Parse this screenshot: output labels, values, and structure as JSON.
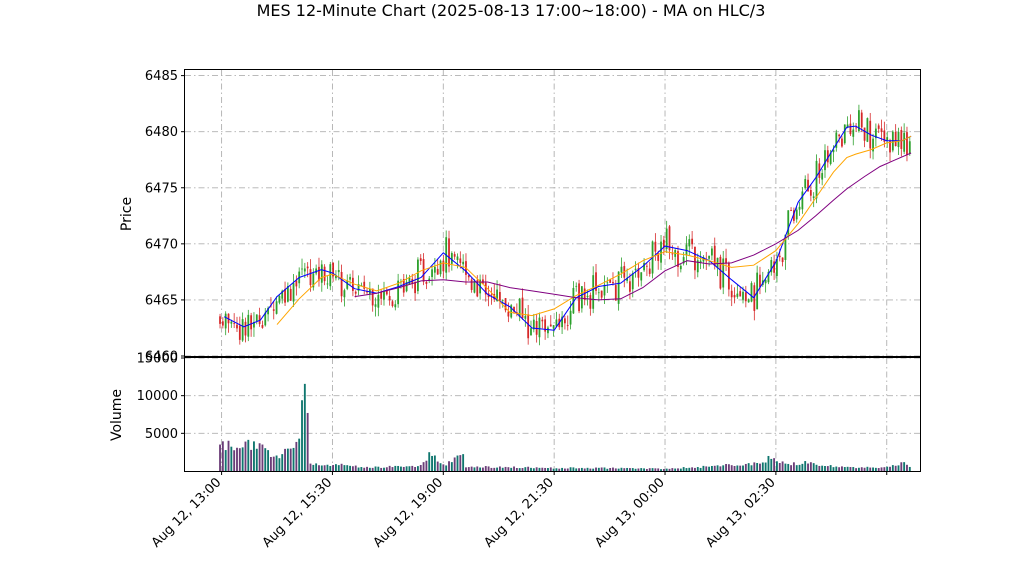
{
  "chart_data": [
    {
      "type": "candlestick",
      "title": "MES 12-Minute Chart (2025-08-13 17:00~18:00) - MA on HLC/3",
      "ylabel": "Price",
      "ylim": [
        6460,
        6485.5
      ],
      "yticks": [
        6460,
        6465,
        6470,
        6475,
        6480,
        6485
      ],
      "grid": true,
      "up_color": "#2ca02c",
      "down_color": "#d62728",
      "series": [
        {
          "color": "#0000ff",
          "points": [
            [
              0.12,
              6463.5
            ],
            [
              1,
              6462.6
            ],
            [
              1.75,
              6463.2
            ],
            [
              2.5,
              6465.3
            ],
            [
              3.5,
              6467.0
            ],
            [
              4.5,
              6467.7
            ],
            [
              5,
              6467.4
            ],
            [
              6,
              6466.0
            ],
            [
              7,
              6465.6
            ],
            [
              8,
              6466.2
            ],
            [
              9,
              6467.0
            ],
            [
              10,
              6469.2
            ],
            [
              11,
              6467.6
            ],
            [
              12,
              6465.5
            ],
            [
              13,
              6464.4
            ],
            [
              14,
              6462.5
            ],
            [
              15,
              6462.3
            ],
            [
              16,
              6465.2
            ],
            [
              17,
              6466.2
            ],
            [
              18,
              6466.5
            ],
            [
              19,
              6468.0
            ],
            [
              20,
              6469.8
            ],
            [
              21,
              6469.4
            ],
            [
              22,
              6468.5
            ],
            [
              23,
              6466.8
            ],
            [
              24,
              6465.2
            ],
            [
              25,
              6468.4
            ],
            [
              26,
              6473.7
            ],
            [
              26.8,
              6475.9
            ],
            [
              27.6,
              6478.5
            ],
            [
              28.2,
              6480.4
            ],
            [
              28.6,
              6480.5
            ],
            [
              29.3,
              6479.7
            ],
            [
              30,
              6479.2
            ],
            [
              30.7,
              6479.2
            ],
            [
              31.1,
              6479.6
            ]
          ]
        },
        {
          "color": "#ffa500",
          "points": [
            [
              2.5,
              6462.8
            ],
            [
              3.5,
              6465.1
            ],
            [
              4.5,
              6467.0
            ],
            [
              5,
              6467.3
            ],
            [
              6,
              6466.4
            ],
            [
              7,
              6465.8
            ],
            [
              8,
              6466.5
            ],
            [
              9,
              6467.6
            ],
            [
              10,
              6468.3
            ],
            [
              11,
              6467.9
            ],
            [
              12,
              6466.0
            ],
            [
              13,
              6463.9
            ],
            [
              14,
              6463.6
            ],
            [
              15,
              6464.2
            ],
            [
              16,
              6465.4
            ],
            [
              17,
              6466.3
            ],
            [
              18,
              6467.3
            ],
            [
              19,
              6468.5
            ],
            [
              20,
              6469.3
            ],
            [
              21,
              6469.0
            ],
            [
              22,
              6468.5
            ],
            [
              23,
              6467.9
            ],
            [
              24,
              6468.1
            ],
            [
              25,
              6469.4
            ],
            [
              26,
              6471.8
            ],
            [
              26.8,
              6474.1
            ],
            [
              27.6,
              6476.4
            ],
            [
              28.2,
              6477.7
            ],
            [
              28.6,
              6478.0
            ],
            [
              29.3,
              6478.4
            ],
            [
              30,
              6479.0
            ],
            [
              30.7,
              6479.2
            ],
            [
              31.1,
              6479.6
            ]
          ]
        },
        {
          "color": "#800080",
          "points": [
            [
              6,
              6465.3
            ],
            [
              7,
              6465.6
            ],
            [
              8,
              6466.1
            ],
            [
              9,
              6466.7
            ],
            [
              10,
              6466.8
            ],
            [
              11,
              6466.6
            ],
            [
              12,
              6466.6
            ],
            [
              13,
              6466.1
            ],
            [
              14,
              6465.8
            ],
            [
              15,
              6465.5
            ],
            [
              16,
              6465.2
            ],
            [
              17,
              6465.0
            ],
            [
              18,
              6465.1
            ],
            [
              19,
              6466.1
            ],
            [
              20,
              6467.6
            ],
            [
              21,
              6468.5
            ],
            [
              22,
              6468.2
            ],
            [
              23,
              6468.3
            ],
            [
              24,
              6469.0
            ],
            [
              25,
              6470.0
            ],
            [
              26,
              6471.2
            ],
            [
              26.8,
              6472.5
            ],
            [
              27.6,
              6473.9
            ],
            [
              28.2,
              6474.9
            ],
            [
              29,
              6476.0
            ],
            [
              29.7,
              6476.9
            ],
            [
              30.4,
              6477.5
            ],
            [
              31.1,
              6478.1
            ]
          ]
        }
      ]
    },
    {
      "type": "bar",
      "ylabel": "Volume",
      "ylim": [
        0,
        15000
      ],
      "yticks": [
        5000,
        10000,
        15000
      ],
      "grid": true,
      "up_color": "#0f766e",
      "down_color": "#6b3d78"
    }
  ],
  "x_axis": {
    "ticks": [
      {
        "pos": 0,
        "label": "Aug 12, 13:00"
      },
      {
        "pos": 5,
        "label": "Aug 12, 15:30"
      },
      {
        "pos": 10,
        "label": "Aug 12, 19:00"
      },
      {
        "pos": 15,
        "label": "Aug 12, 21:30"
      },
      {
        "pos": 20,
        "label": "Aug 13, 00:00"
      },
      {
        "pos": 25,
        "label": "Aug 13, 02:30"
      },
      {
        "pos": 30,
        "label": ""
      }
    ],
    "xlim": [
      -1.65,
      31.5
    ]
  },
  "volume_profile": [
    [
      0,
      3500
    ],
    [
      0.5,
      3100
    ],
    [
      1,
      3700
    ],
    [
      1.5,
      3300
    ],
    [
      2,
      2600
    ],
    [
      2.5,
      2200
    ],
    [
      3,
      2500
    ],
    [
      3.5,
      3900
    ],
    [
      3.8,
      13700
    ],
    [
      3.9,
      5500
    ],
    [
      4,
      1200
    ],
    [
      4.5,
      700
    ],
    [
      5,
      900
    ],
    [
      6,
      600
    ],
    [
      7,
      500
    ],
    [
      8,
      600
    ],
    [
      9,
      700
    ],
    [
      9.6,
      2900
    ],
    [
      9.8,
      1200
    ],
    [
      10,
      800
    ],
    [
      10.9,
      2000
    ],
    [
      11,
      600
    ],
    [
      13,
      500
    ],
    [
      15,
      400
    ],
    [
      17,
      400
    ],
    [
      20,
      300
    ],
    [
      22,
      600
    ],
    [
      23,
      800
    ],
    [
      24,
      900
    ],
    [
      24.9,
      1900
    ],
    [
      25,
      1200
    ],
    [
      26,
      900
    ],
    [
      26.4,
      1100
    ],
    [
      27,
      800
    ],
    [
      28,
      500
    ],
    [
      30,
      500
    ],
    [
      30.9,
      1100
    ],
    [
      31.1,
      500
    ]
  ]
}
